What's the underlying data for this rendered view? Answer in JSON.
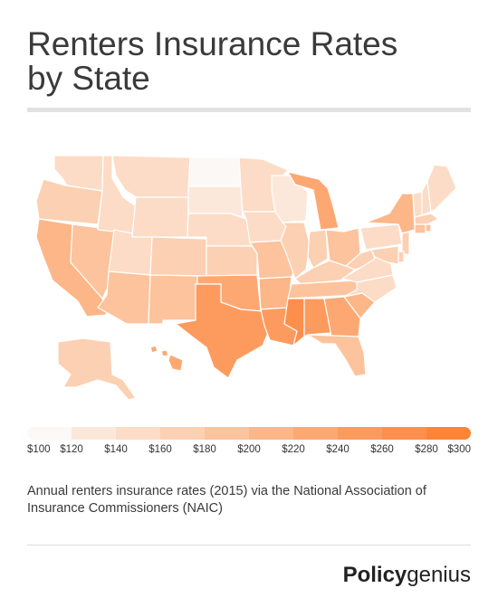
{
  "title": {
    "line1": "Renters Insurance Rates",
    "line2": "by State"
  },
  "legend": {
    "ticks": [
      "$100",
      "$120",
      "$140",
      "$160",
      "$180",
      "$200",
      "$220",
      "$240",
      "$260",
      "$280",
      "$300"
    ],
    "colors": [
      "#fbf8f6",
      "#fce8da",
      "#fcdcc6",
      "#fcd0b2",
      "#fcc39d",
      "#fcb688",
      "#fda873",
      "#fd9b5e",
      "#fd8f4c",
      "#fe8438"
    ],
    "range": [
      100,
      300
    ]
  },
  "map_data": {
    "type": "choropleth",
    "region": "United States",
    "unit": "USD per year",
    "states": {
      "WA": 147,
      "OR": 160,
      "CA": 212,
      "NV": 182,
      "ID": 146,
      "MT": 143,
      "WY": 150,
      "UT": 153,
      "AZ": 190,
      "CO": 170,
      "NM": 186,
      "ND": 108,
      "SD": 134,
      "NE": 148,
      "KS": 172,
      "OK": 237,
      "TX": 248,
      "MN": 144,
      "IA": 152,
      "MO": 186,
      "AR": 206,
      "LA": 246,
      "WI": 130,
      "IL": 171,
      "MI": 220,
      "IN": 179,
      "OH": 187,
      "KY": 174,
      "TN": 192,
      "MS": 261,
      "AL": 240,
      "GA": 227,
      "FL": 196,
      "SC": 201,
      "NC": 158,
      "VA": 154,
      "WV": 170,
      "PA": 158,
      "NY": 212,
      "VT": 144,
      "NH": 143,
      "ME": 140,
      "MA": 176,
      "RI": 182,
      "CT": 186,
      "NJ": 172,
      "DE": 166,
      "MD": 173,
      "AK": 166,
      "HI": 222
    }
  },
  "caption": "Annual renters insurance rates (2015) via the National Association of Insurance Commissioners (NAIC)",
  "brand": {
    "part1": "Policy",
    "part2": "genius"
  }
}
